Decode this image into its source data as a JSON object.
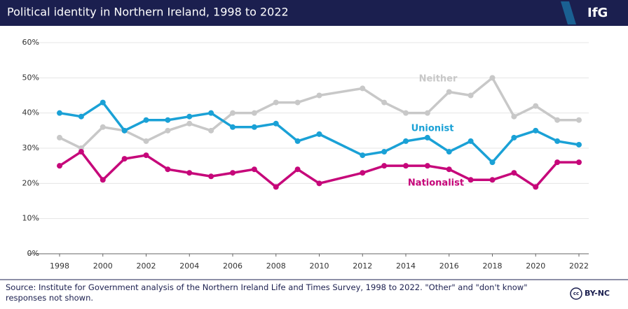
{
  "chart_data": {
    "type": "line",
    "title": "Political identity in Northern Ireland, 1998 to 2022",
    "brand": "IfG",
    "source": "Source: Institute for Government analysis of the Northern Ireland Life and Times Survey, 1998 to 2022. \"Other\" and \"don't know\" responses not shown.",
    "license": "BY-NC",
    "x": [
      1998,
      1999,
      2000,
      2001,
      2002,
      2003,
      2004,
      2005,
      2006,
      2007,
      2008,
      2009,
      2010,
      2012,
      2013,
      2014,
      2015,
      2016,
      2017,
      2018,
      2019,
      2020,
      2021,
      2022
    ],
    "xlim": [
      1998,
      2022
    ],
    "xticks": [
      1998,
      2000,
      2002,
      2004,
      2006,
      2008,
      2010,
      2012,
      2014,
      2016,
      2018,
      2020,
      2022
    ],
    "ylim": [
      0,
      60
    ],
    "yticks": [
      {
        "value": 0,
        "label": "0%"
      },
      {
        "value": 10,
        "label": "10%"
      },
      {
        "value": 20,
        "label": "20%"
      },
      {
        "value": 30,
        "label": "30%"
      },
      {
        "value": 40,
        "label": "40%"
      },
      {
        "value": 50,
        "label": "50%"
      },
      {
        "value": 60,
        "label": "60%"
      }
    ],
    "grid": true,
    "series": [
      {
        "name": "Neither",
        "color": "#c8c8c8",
        "values": [
          33,
          30,
          36,
          35,
          32,
          35,
          37,
          35,
          40,
          40,
          43,
          43,
          45,
          47,
          43,
          40,
          40,
          46,
          45,
          50,
          39,
          42,
          38,
          38
        ]
      },
      {
        "name": "Unionist",
        "color": "#1aa1d6",
        "values": [
          40,
          39,
          43,
          35,
          38,
          38,
          39,
          40,
          36,
          36,
          37,
          32,
          34,
          28,
          29,
          32,
          33,
          29,
          32,
          26,
          33,
          35,
          32,
          31
        ]
      },
      {
        "name": "Nationalist",
        "color": "#c6077a",
        "values": [
          25,
          29,
          21,
          27,
          28,
          24,
          23,
          22,
          23,
          24,
          19,
          24,
          20,
          23,
          25,
          25,
          25,
          24,
          21,
          21,
          23,
          19,
          26,
          26
        ]
      }
    ]
  }
}
